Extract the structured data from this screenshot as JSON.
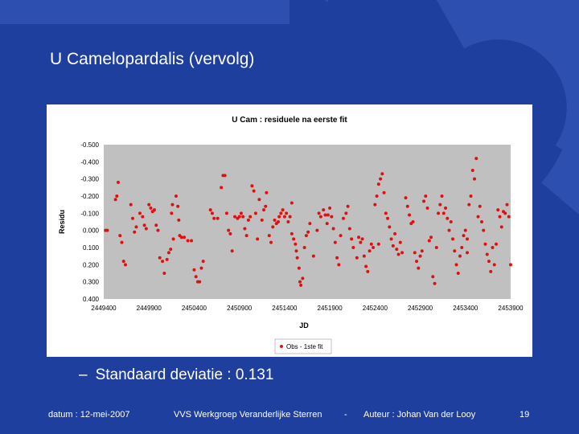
{
  "slide": {
    "title": "U Camelopardalis (vervolg)",
    "bullet": "Standaard deviatie : 0.131",
    "bullet_dash": "–"
  },
  "footer": {
    "date": "datum : 12-mei-2007",
    "organization": "VVS Werkgroep Veranderlijke Sterren",
    "separator": "-",
    "author": "Auteur : Johan Van der Looy",
    "page": "19"
  },
  "colors": {
    "background": "#1f3f9e",
    "decoration": "#2c4fb0",
    "points": "#dd1111",
    "plot_area": "#c0c0c0"
  },
  "chart_data": {
    "type": "scatter",
    "title": "U Cam : residuele na eerste fit",
    "xlabel": "JD",
    "ylabel": "Residu",
    "xlim": [
      2449400,
      2453900
    ],
    "ylim": [
      -0.5,
      0.4
    ],
    "y_reversed": true,
    "xticks": [
      2449400,
      2449900,
      2450400,
      2450900,
      2451400,
      2451900,
      2452400,
      2452900,
      2453400,
      2453900
    ],
    "xtick_labels": [
      "2449400",
      "2449900",
      "2450400",
      "2450900",
      "2451400",
      "2451900",
      "2452400",
      "2452900",
      "2453400",
      "2453900"
    ],
    "yticks": [
      -0.5,
      -0.4,
      -0.3,
      -0.2,
      -0.1,
      0.0,
      0.1,
      0.2,
      0.3,
      0.4
    ],
    "ytick_labels": [
      "-0.500",
      "-0.400",
      "-0.300",
      "-0.200",
      "-0.100",
      "0.000",
      "0.100",
      "0.200",
      "0.300",
      "0.400"
    ],
    "legend": {
      "position": "bottom",
      "label": "Obs - 1ste fit"
    },
    "series": [
      {
        "name": "Obs - 1ste fit",
        "points": [
          [
            2449420,
            0.0
          ],
          [
            2449440,
            0.0
          ],
          [
            2449530,
            -0.18
          ],
          [
            2449545,
            -0.2
          ],
          [
            2449560,
            -0.28
          ],
          [
            2449580,
            0.03
          ],
          [
            2449600,
            0.07
          ],
          [
            2449620,
            0.18
          ],
          [
            2449640,
            0.2
          ],
          [
            2449700,
            -0.15
          ],
          [
            2449720,
            -0.07
          ],
          [
            2449740,
            0.01
          ],
          [
            2449760,
            -0.02
          ],
          [
            2449800,
            -0.1
          ],
          [
            2449830,
            -0.08
          ],
          [
            2449850,
            -0.03
          ],
          [
            2449870,
            -0.01
          ],
          [
            2449900,
            -0.15
          ],
          [
            2449920,
            -0.13
          ],
          [
            2449940,
            -0.11
          ],
          [
            2449960,
            -0.12
          ],
          [
            2449980,
            -0.03
          ],
          [
            2450000,
            0.0
          ],
          [
            2450020,
            0.16
          ],
          [
            2450050,
            0.18
          ],
          [
            2450070,
            0.25
          ],
          [
            2450100,
            0.17
          ],
          [
            2450120,
            0.13
          ],
          [
            2450140,
            0.11
          ],
          [
            2450150,
            -0.1
          ],
          [
            2450160,
            -0.15
          ],
          [
            2450170,
            0.05
          ],
          [
            2450200,
            -0.2
          ],
          [
            2450220,
            -0.14
          ],
          [
            2450230,
            -0.06
          ],
          [
            2450240,
            0.03
          ],
          [
            2450260,
            0.04
          ],
          [
            2450290,
            0.04
          ],
          [
            2450330,
            0.06
          ],
          [
            2450370,
            0.06
          ],
          [
            2450400,
            0.23
          ],
          [
            2450420,
            0.27
          ],
          [
            2450440,
            0.3
          ],
          [
            2450460,
            0.3
          ],
          [
            2450480,
            0.22
          ],
          [
            2450500,
            0.18
          ],
          [
            2450580,
            -0.12
          ],
          [
            2450600,
            -0.1
          ],
          [
            2450620,
            -0.07
          ],
          [
            2450660,
            -0.07
          ],
          [
            2450700,
            -0.25
          ],
          [
            2450720,
            -0.32
          ],
          [
            2450740,
            -0.32
          ],
          [
            2450760,
            -0.1
          ],
          [
            2450780,
            0.0
          ],
          [
            2450800,
            0.02
          ],
          [
            2450820,
            0.12
          ],
          [
            2450850,
            -0.08
          ],
          [
            2450880,
            -0.07
          ],
          [
            2450900,
            -0.08
          ],
          [
            2450920,
            -0.1
          ],
          [
            2450940,
            -0.08
          ],
          [
            2450960,
            -0.01
          ],
          [
            2450980,
            0.03
          ],
          [
            2451000,
            -0.06
          ],
          [
            2451020,
            -0.08
          ],
          [
            2451040,
            -0.26
          ],
          [
            2451060,
            -0.23
          ],
          [
            2451080,
            -0.1
          ],
          [
            2451100,
            0.05
          ],
          [
            2451120,
            -0.18
          ],
          [
            2451150,
            -0.06
          ],
          [
            2451170,
            -0.12
          ],
          [
            2451190,
            -0.14
          ],
          [
            2451200,
            -0.22
          ],
          [
            2451230,
            0.03
          ],
          [
            2451250,
            0.07
          ],
          [
            2451270,
            -0.02
          ],
          [
            2451290,
            -0.06
          ],
          [
            2451310,
            -0.04
          ],
          [
            2451330,
            -0.05
          ],
          [
            2451340,
            -0.08
          ],
          [
            2451360,
            -0.1
          ],
          [
            2451380,
            -0.12
          ],
          [
            2451400,
            -0.08
          ],
          [
            2451420,
            -0.1
          ],
          [
            2451440,
            -0.05
          ],
          [
            2451460,
            -0.08
          ],
          [
            2451480,
            0.02
          ],
          [
            2451500,
            0.05
          ],
          [
            2451520,
            0.08
          ],
          [
            2451530,
            0.12
          ],
          [
            2451540,
            0.16
          ],
          [
            2451560,
            0.22
          ],
          [
            2451570,
            0.3
          ],
          [
            2451580,
            0.32
          ],
          [
            2451600,
            0.28
          ],
          [
            2451620,
            0.1
          ],
          [
            2451640,
            0.03
          ],
          [
            2451660,
            0.01
          ],
          [
            2451680,
            -0.04
          ],
          [
            2451720,
            0.15
          ],
          [
            2451760,
            0.0
          ],
          [
            2451780,
            -0.1
          ],
          [
            2451800,
            -0.08
          ],
          [
            2451830,
            -0.12
          ],
          [
            2451850,
            -0.09
          ],
          [
            2451870,
            -0.04
          ],
          [
            2451880,
            -0.09
          ],
          [
            2451900,
            -0.13
          ],
          [
            2451920,
            -0.08
          ],
          [
            2451940,
            -0.01
          ],
          [
            2451960,
            0.07
          ],
          [
            2451980,
            0.16
          ],
          [
            2452000,
            0.2
          ],
          [
            2452020,
            0.03
          ],
          [
            2452050,
            -0.07
          ],
          [
            2452080,
            -0.1
          ],
          [
            2452100,
            -0.14
          ],
          [
            2452120,
            -0.01
          ],
          [
            2452140,
            0.05
          ],
          [
            2452160,
            0.1
          ],
          [
            2452200,
            0.16
          ],
          [
            2452220,
            0.04
          ],
          [
            2452240,
            0.07
          ],
          [
            2452260,
            0.05
          ],
          [
            2452280,
            0.15
          ],
          [
            2452300,
            0.21
          ],
          [
            2452320,
            0.24
          ],
          [
            2452340,
            0.12
          ],
          [
            2452360,
            0.08
          ],
          [
            2452380,
            0.1
          ],
          [
            2452400,
            -0.15
          ],
          [
            2452420,
            -0.2
          ],
          [
            2452440,
            -0.27
          ],
          [
            2452460,
            -0.3
          ],
          [
            2452480,
            -0.33
          ],
          [
            2452500,
            -0.22
          ],
          [
            2452520,
            -0.1
          ],
          [
            2452540,
            -0.07
          ],
          [
            2452560,
            -0.02
          ],
          [
            2452580,
            0.05
          ],
          [
            2452600,
            0.09
          ],
          [
            2452620,
            0.02
          ],
          [
            2452640,
            0.11
          ],
          [
            2452660,
            0.14
          ],
          [
            2452680,
            0.07
          ],
          [
            2452700,
            0.13
          ],
          [
            2452740,
            -0.19
          ],
          [
            2452760,
            -0.14
          ],
          [
            2452780,
            -0.09
          ],
          [
            2452800,
            -0.04
          ],
          [
            2452820,
            -0.05
          ],
          [
            2452840,
            0.13
          ],
          [
            2452860,
            0.18
          ],
          [
            2452880,
            0.22
          ],
          [
            2452900,
            0.15
          ],
          [
            2452920,
            0.12
          ],
          [
            2452940,
            -0.17
          ],
          [
            2452960,
            -0.2
          ],
          [
            2452980,
            -0.13
          ],
          [
            2453000,
            0.06
          ],
          [
            2453020,
            0.04
          ],
          [
            2453040,
            0.27
          ],
          [
            2453060,
            0.31
          ],
          [
            2453080,
            0.1
          ],
          [
            2453100,
            -0.1
          ],
          [
            2453120,
            -0.15
          ],
          [
            2453140,
            -0.2
          ],
          [
            2453160,
            -0.1
          ],
          [
            2453180,
            -0.13
          ],
          [
            2453200,
            -0.07
          ],
          [
            2453220,
            0.0
          ],
          [
            2453240,
            -0.05
          ],
          [
            2453260,
            0.05
          ],
          [
            2453280,
            0.12
          ],
          [
            2453300,
            0.2
          ],
          [
            2453320,
            0.25
          ],
          [
            2453340,
            0.15
          ],
          [
            2453360,
            0.1
          ],
          [
            2453380,
            0.03
          ],
          [
            2453400,
            0.0
          ],
          [
            2453420,
            0.05
          ],
          [
            2453440,
            -0.15
          ],
          [
            2453460,
            -0.2
          ],
          [
            2453480,
            -0.35
          ],
          [
            2453500,
            -0.3
          ],
          [
            2453520,
            -0.42
          ],
          [
            2453540,
            -0.08
          ],
          [
            2453560,
            -0.14
          ],
          [
            2453580,
            -0.05
          ],
          [
            2453600,
            0.0
          ],
          [
            2453620,
            0.08
          ],
          [
            2453640,
            0.14
          ],
          [
            2453660,
            0.18
          ],
          [
            2453680,
            0.24
          ],
          [
            2453700,
            0.1
          ],
          [
            2453720,
            0.2
          ],
          [
            2453740,
            0.08
          ],
          [
            2453760,
            -0.12
          ],
          [
            2453780,
            -0.08
          ],
          [
            2453800,
            -0.02
          ],
          [
            2453820,
            -0.11
          ],
          [
            2453840,
            -0.1
          ],
          [
            2453860,
            -0.15
          ],
          [
            2453880,
            -0.08
          ],
          [
            2453900,
            0.2
          ],
          [
            2453420,
            0.13
          ],
          [
            2452440,
            0.08
          ],
          [
            2451480,
            -0.16
          ]
        ]
      }
    ]
  }
}
